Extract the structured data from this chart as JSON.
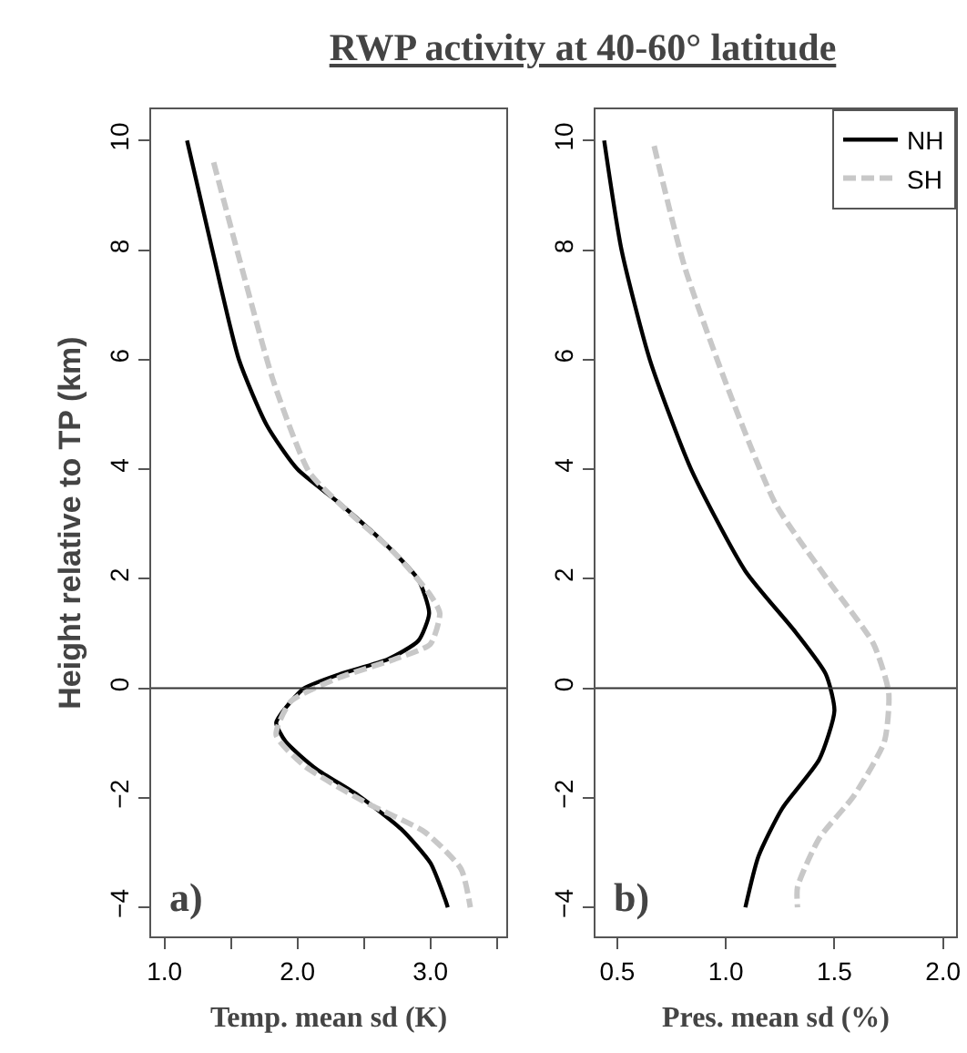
{
  "chart_data": [
    {
      "type": "line",
      "title": "RWP activity at 40-60° latitude",
      "xlabel": "Temp. mean sd (K)",
      "ylabel": "Height relative to TP (km)",
      "annotations": [
        "a)"
      ],
      "xlim": [
        0.9,
        3.57
      ],
      "xticks": [
        {
          "value": 1,
          "label": "1.0"
        },
        {
          "value": 1.5,
          "label": null
        },
        {
          "value": 2,
          "label": "2.0"
        },
        {
          "value": 2.5,
          "label": null
        },
        {
          "value": 3,
          "label": "3.0"
        },
        {
          "value": 3.5,
          "label": null
        }
      ],
      "ylim": [
        -4.53,
        10.57
      ],
      "yticks": [
        -4,
        -2,
        0,
        2,
        4,
        6,
        8,
        10
      ],
      "grid": false,
      "legend": false,
      "ref_lines": [
        {
          "axis": "y",
          "value": 0,
          "color": "#333333"
        }
      ],
      "series": [
        {
          "color": "#000000",
          "line_style": "solid",
          "x": [
            1.17,
            1.36,
            1.56,
            1.77,
            2.0,
            2.32,
            2.68,
            2.91,
            2.99,
            2.91,
            2.68,
            2.32,
            2.05,
            1.91,
            1.84,
            1.91,
            2.14,
            2.46,
            2.78,
            3.0,
            3.11,
            3.13
          ],
          "values": [
            10,
            8,
            6,
            4.8,
            4,
            3.37,
            2.59,
            1.98,
            1.37,
            0.87,
            0.53,
            0.26,
            0,
            -0.36,
            -0.63,
            -0.97,
            -1.47,
            -1.96,
            -2.57,
            -3.19,
            -3.85,
            -4
          ]
        },
        {
          "color": "#c8c8c8",
          "line_style": "dashed",
          "x": [
            1.37,
            1.59,
            1.82,
            2.09,
            2.37,
            2.73,
            3.0,
            3.07,
            3.0,
            2.73,
            2.32,
            1.95,
            1.84,
            2.05,
            2.5,
            2.96,
            3.23,
            3.3
          ],
          "values": [
            9.6,
            7.6,
            5.6,
            3.94,
            3.25,
            2.47,
            1.7,
            1.37,
            0.81,
            0.53,
            0.2,
            -0.24,
            -0.85,
            -1.41,
            -2.07,
            -2.63,
            -3.3,
            -4
          ]
        }
      ]
    },
    {
      "type": "line",
      "xlabel": "Pres. mean sd (%)",
      "annotations": [
        "b)"
      ],
      "xlim": [
        0.4,
        2.06
      ],
      "xticks": [
        0.5,
        {
          "value": 1,
          "label": "1.0"
        },
        1.5,
        {
          "value": 2,
          "label": "2.0"
        }
      ],
      "ylim": [
        -4.53,
        10.57
      ],
      "yticks": [
        -4,
        -2,
        0,
        2,
        4,
        6,
        8,
        10
      ],
      "grid": false,
      "legend": "top right",
      "ref_lines": [
        {
          "axis": "y",
          "value": 0,
          "color": "#333333"
        }
      ],
      "series": [
        {
          "name": "NH",
          "color": "#000000",
          "line_style": "solid",
          "x": [
            0.44,
            0.52,
            0.65,
            0.84,
            1.09,
            1.32,
            1.46,
            1.5,
            1.43,
            1.26,
            1.15,
            1.09
          ],
          "values": [
            10,
            8,
            6,
            4,
            2.14,
            1.03,
            0.26,
            -0.41,
            -1.3,
            -2.19,
            -3.07,
            -4
          ]
        },
        {
          "name": "SH",
          "color": "#c8c8c8",
          "line_style": "dashed",
          "x": [
            0.67,
            0.81,
            1.01,
            1.23,
            1.48,
            1.68,
            1.75,
            1.73,
            1.59,
            1.43,
            1.33,
            1.33
          ],
          "values": [
            9.9,
            7.7,
            5.47,
            3.36,
            1.92,
            0.81,
            -0.08,
            -0.97,
            -1.96,
            -2.74,
            -3.63,
            -4
          ]
        }
      ]
    }
  ]
}
